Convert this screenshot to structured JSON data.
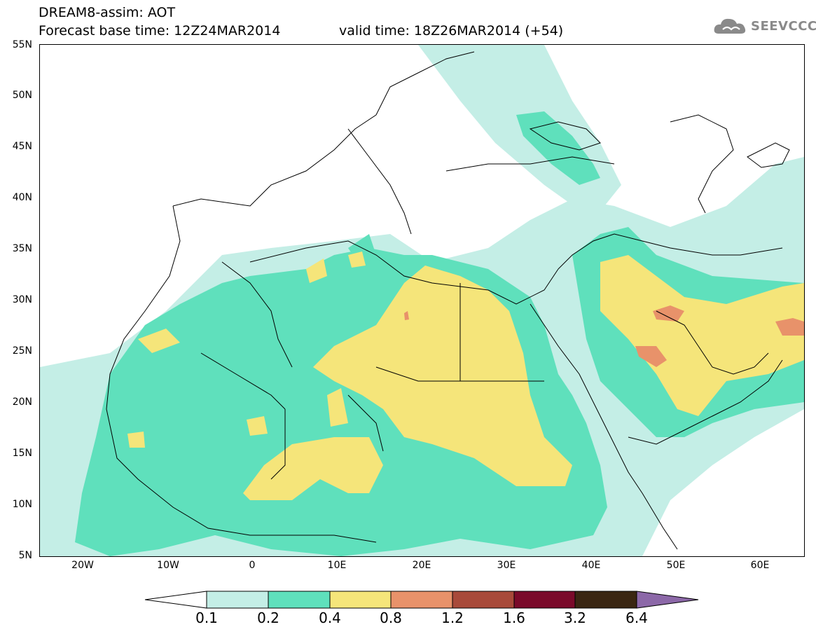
{
  "header": {
    "line1": "DREAM8-assim: AOT",
    "line2": "Forecast base time: 12Z24MAR2014",
    "line2b": "valid time: 18Z26MAR2014 (+54)"
  },
  "logo": {
    "text": "SEEVCCC",
    "icon": "cloud-icon"
  },
  "axes": {
    "lat_ticks": [
      "55N",
      "50N",
      "45N",
      "40N",
      "35N",
      "30N",
      "25N",
      "20N",
      "15N",
      "10N",
      "5N"
    ],
    "lon_ticks": [
      "20W",
      "10W",
      "0",
      "10E",
      "20E",
      "30E",
      "40E",
      "50E",
      "60E"
    ]
  },
  "legend": {
    "labels": [
      "0.1",
      "0.2",
      "0.4",
      "0.8",
      "1.2",
      "1.6",
      "3.2",
      "6.4"
    ],
    "colors": [
      "#ffffff",
      "#c4eee6",
      "#5fe0bc",
      "#f5e57a",
      "#e8926a",
      "#a84a3a",
      "#7a0a2a",
      "#3a2612",
      "#8c68a8"
    ]
  }
}
